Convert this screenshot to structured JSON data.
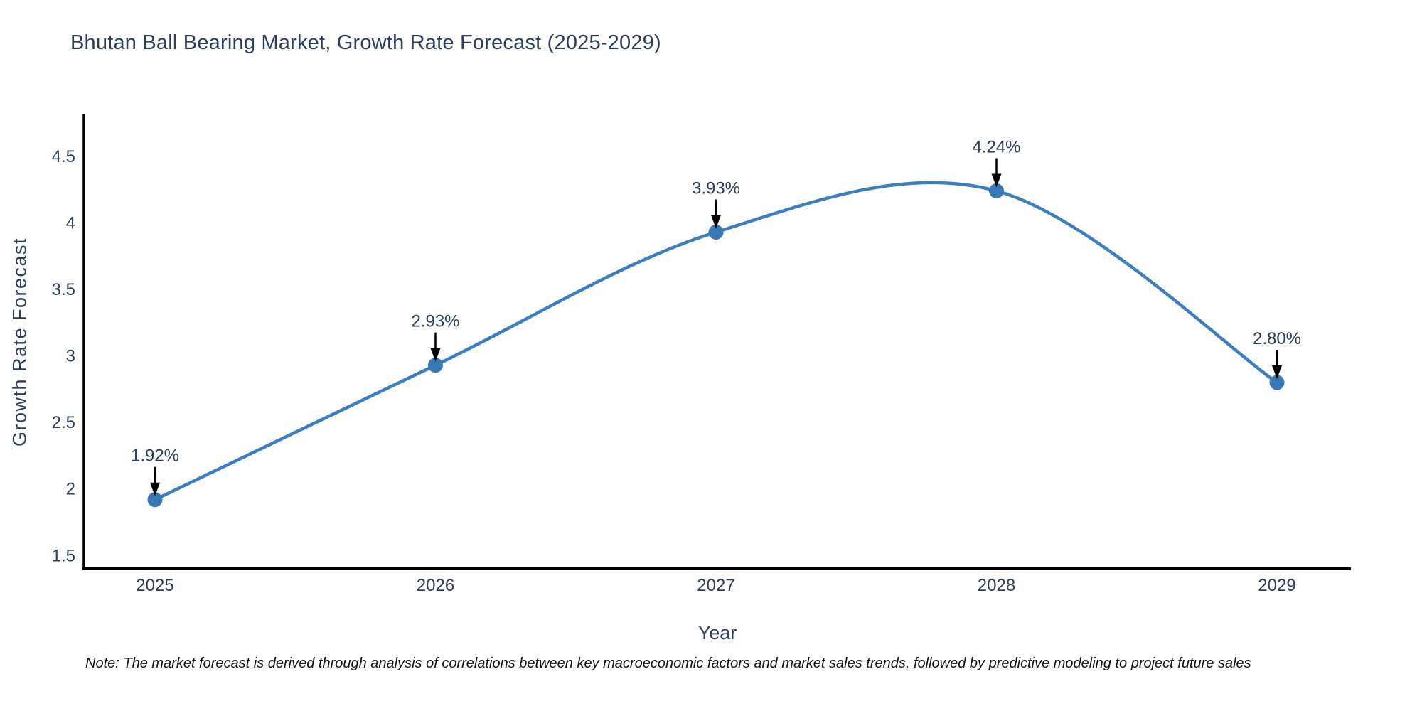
{
  "chart_data": {
    "type": "line",
    "title": "Bhutan Ball Bearing Market, Growth Rate Forecast (2025-2029)",
    "xlabel": "Year",
    "ylabel": "Growth Rate Forecast",
    "categories": [
      "2025",
      "2026",
      "2027",
      "2028",
      "2029"
    ],
    "series": [
      {
        "name": "Growth Rate Forecast",
        "values": [
          1.92,
          2.93,
          3.93,
          4.24,
          2.8
        ]
      }
    ],
    "point_labels": [
      "1.92%",
      "2.93%",
      "3.93%",
      "4.24%",
      "2.80%"
    ],
    "yticks": [
      1.5,
      2,
      2.5,
      3,
      3.5,
      4,
      4.5
    ],
    "ylim": [
      1.4,
      4.82
    ],
    "line_shape": "spline",
    "grid": false,
    "legend_position": "none",
    "colors": {
      "line": "#3c7ebf",
      "marker": "#3878b5",
      "axis": "#000000",
      "tick_text": "#2a3f5f",
      "annotation_text": "#2a3f5f",
      "annotation_arrow": "#000000",
      "background": "#ffffff"
    }
  },
  "note": {
    "text": "Note: The market forecast is derived through analysis of correlations between key macroeconomic factors and market sales trends, followed by predictive modeling to project future sales"
  }
}
